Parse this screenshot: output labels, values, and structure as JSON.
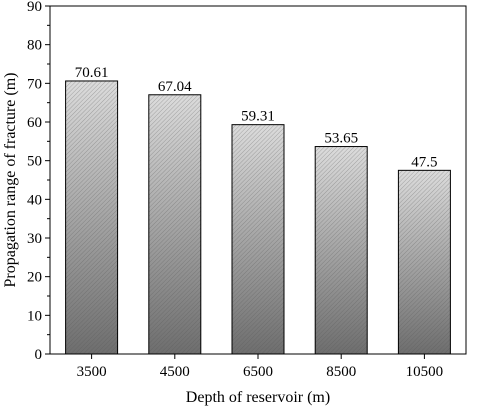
{
  "chart_data": {
    "type": "bar",
    "title": "",
    "xlabel": "Depth of reservoir (m)",
    "ylabel": "Propagation range of fracture (m)",
    "categories": [
      "3500",
      "4500",
      "6500",
      "8500",
      "10500"
    ],
    "values": [
      70.61,
      67.04,
      59.31,
      53.65,
      47.5
    ],
    "value_labels": [
      "70.61",
      "67.04",
      "59.31",
      "53.65",
      "47.5"
    ],
    "ylim": [
      0,
      90
    ],
    "yticks": [
      0,
      10,
      20,
      30,
      40,
      50,
      60,
      70,
      80,
      90
    ],
    "ytick_labels": [
      "0",
      "10",
      "20",
      "30",
      "40",
      "50",
      "60",
      "70",
      "80",
      "90"
    ],
    "grid": false,
    "legend": "none",
    "bar_fill": "gradient gray with diagonal hatching",
    "colors": {
      "bar_light": "#dcdcdc",
      "bar_dark": "#6e6e6e",
      "hatch": "#555555",
      "axis": "#000000"
    }
  }
}
